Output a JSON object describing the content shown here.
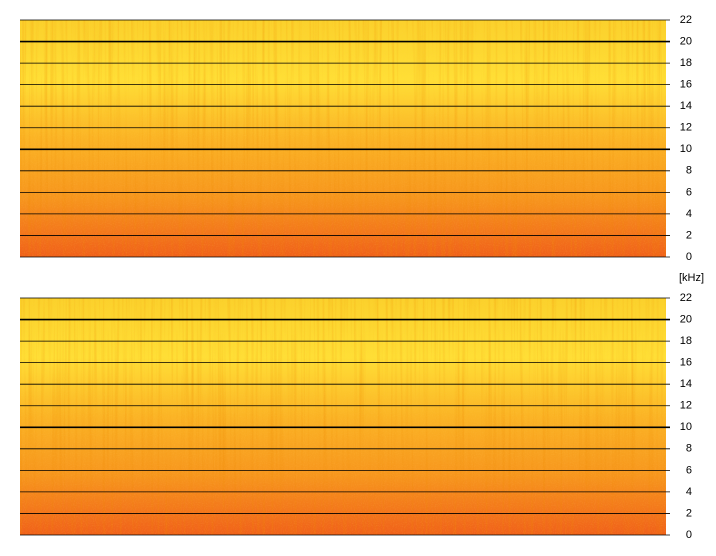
{
  "chart_data": [
    {
      "type": "spectrogram",
      "ylim": [
        0,
        22
      ],
      "yticks": [
        0,
        2,
        4,
        6,
        8,
        10,
        12,
        14,
        16,
        18,
        20,
        22
      ],
      "colors": [
        "#fbd12b",
        "#ffdf35",
        "#fbb425",
        "#f7961e",
        "#f0601a"
      ],
      "grid": true
    },
    {
      "type": "spectrogram",
      "y_label": "[kHz]",
      "ylim": [
        0,
        22
      ],
      "yticks": [
        0,
        2,
        4,
        6,
        8,
        10,
        12,
        14,
        16,
        18,
        20,
        22
      ],
      "colors": [
        "#fbd12b",
        "#ffdf35",
        "#fbb425",
        "#f7961e",
        "#f0601a"
      ],
      "grid": true
    }
  ]
}
